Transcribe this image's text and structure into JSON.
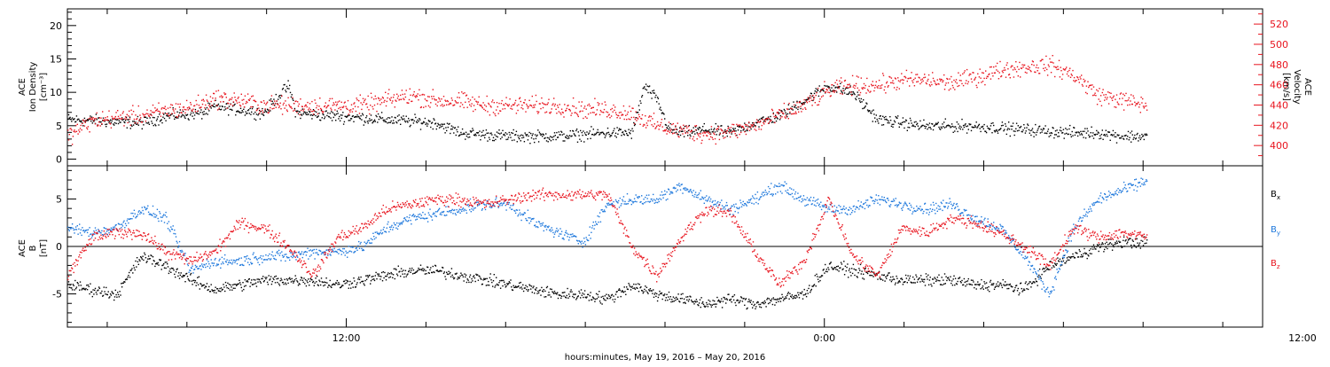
{
  "chart_data": [
    {
      "type": "scatter",
      "panel": "ion-density-velocity",
      "ylabel_left": [
        "ACE",
        "Ion Density",
        "[cm⁻³]"
      ],
      "ylabel_right": [
        "ACE",
        "Velocity",
        "[km/s]"
      ],
      "y_left_range": [
        -1,
        22.5
      ],
      "y_left_ticks": [
        "0",
        "5",
        "10",
        "15",
        "20"
      ],
      "y_right_range": [
        380,
        535
      ],
      "y_right_ticks": [
        "400",
        "420",
        "440",
        "460",
        "480",
        "500",
        "520"
      ],
      "colors": {
        "density": "#000000",
        "velocity": "#e8141e"
      },
      "density_anchors": [
        [
          0,
          6
        ],
        [
          3,
          5.5
        ],
        [
          4,
          6.5
        ],
        [
          5.5,
          7
        ],
        [
          6,
          8
        ],
        [
          7,
          7.5
        ],
        [
          8,
          7
        ],
        [
          8.7,
          10
        ],
        [
          9,
          11
        ],
        [
          9.3,
          7
        ],
        [
          11,
          6.5
        ],
        [
          13,
          6
        ],
        [
          15,
          5.5
        ],
        [
          16,
          4
        ],
        [
          18,
          3.5
        ],
        [
          20,
          3.5
        ],
        [
          22,
          4
        ],
        [
          23,
          4
        ],
        [
          23.5,
          11
        ],
        [
          24,
          9
        ],
        [
          24.5,
          4.5
        ],
        [
          25,
          4
        ],
        [
          26,
          4.5
        ],
        [
          27,
          4
        ],
        [
          28,
          5.5
        ],
        [
          29,
          6.5
        ],
        [
          30.5,
          10
        ],
        [
          31,
          11
        ],
        [
          32,
          10
        ],
        [
          33,
          6
        ],
        [
          35,
          5
        ],
        [
          37,
          5
        ],
        [
          39,
          4.5
        ],
        [
          41,
          4
        ],
        [
          42,
          4
        ],
        [
          43,
          3.5
        ],
        [
          44,
          3.5
        ]
      ],
      "velocity_anchors": [
        [
          0,
          410
        ],
        [
          1,
          425
        ],
        [
          2,
          428
        ],
        [
          3,
          430
        ],
        [
          4,
          435
        ],
        [
          5,
          438
        ],
        [
          6,
          447
        ],
        [
          7,
          445
        ],
        [
          8,
          440
        ],
        [
          9,
          440
        ],
        [
          10,
          440
        ],
        [
          11,
          440
        ],
        [
          12,
          440
        ],
        [
          13,
          445
        ],
        [
          14,
          450
        ],
        [
          15,
          445
        ],
        [
          16,
          444
        ],
        [
          17,
          440
        ],
        [
          18,
          440
        ],
        [
          19,
          440
        ],
        [
          20,
          440
        ],
        [
          21,
          436
        ],
        [
          22,
          436
        ],
        [
          23,
          432
        ],
        [
          24,
          420
        ],
        [
          25,
          415
        ],
        [
          26,
          412
        ],
        [
          27,
          414
        ],
        [
          28,
          420
        ],
        [
          29,
          430
        ],
        [
          30,
          440
        ],
        [
          31,
          455
        ],
        [
          32,
          460
        ],
        [
          33,
          460
        ],
        [
          34,
          465
        ],
        [
          35,
          465
        ],
        [
          36,
          462
        ],
        [
          37,
          468
        ],
        [
          38,
          475
        ],
        [
          39,
          478
        ],
        [
          40,
          480
        ],
        [
          41,
          470
        ],
        [
          42,
          450
        ],
        [
          43,
          445
        ],
        [
          44,
          440
        ]
      ],
      "density_noise": 1.3,
      "velocity_noise": 13
    },
    {
      "type": "scatter",
      "panel": "magnetic-field",
      "ylabel_left": [
        "ACE",
        "B",
        "[nT]"
      ],
      "y_range": [
        -8.5,
        8.5
      ],
      "y_ticks": [
        "-5",
        "0",
        "5"
      ],
      "series": [
        {
          "name": "Bx",
          "color": "#000000",
          "anchors": [
            [
              0,
              -4
            ],
            [
              1,
              -4.5
            ],
            [
              2,
              -5
            ],
            [
              3,
              -1
            ],
            [
              4,
              -2
            ],
            [
              5,
              -3.5
            ],
            [
              6,
              -4.5
            ],
            [
              7,
              -4
            ],
            [
              8,
              -3.5
            ],
            [
              9,
              -3.5
            ],
            [
              10,
              -3.5
            ],
            [
              11,
              -4
            ],
            [
              12,
              -3.5
            ],
            [
              13,
              -3
            ],
            [
              14,
              -2.5
            ],
            [
              15,
              -2.5
            ],
            [
              16,
              -3
            ],
            [
              17,
              -3.5
            ],
            [
              18,
              -4
            ],
            [
              19,
              -4.5
            ],
            [
              20,
              -5
            ],
            [
              21,
              -5
            ],
            [
              22,
              -5.5
            ],
            [
              23,
              -4
            ],
            [
              24,
              -5
            ],
            [
              25,
              -5.5
            ],
            [
              26,
              -6
            ],
            [
              27,
              -5.5
            ],
            [
              28,
              -6
            ],
            [
              29,
              -5.5
            ],
            [
              30,
              -5
            ],
            [
              31,
              -2
            ],
            [
              32,
              -2.5
            ],
            [
              33,
              -3
            ],
            [
              34,
              -3.5
            ],
            [
              35,
              -3.5
            ],
            [
              36,
              -3.5
            ],
            [
              37,
              -4
            ],
            [
              38,
              -4
            ],
            [
              39,
              -4.5
            ],
            [
              40,
              -2
            ],
            [
              41,
              -1
            ],
            [
              42,
              0
            ],
            [
              43,
              0.5
            ],
            [
              44,
              0.5
            ]
          ]
        },
        {
          "name": "By",
          "color": "#1e78dc",
          "anchors": [
            [
              0,
              2
            ],
            [
              1,
              1.5
            ],
            [
              2,
              2
            ],
            [
              3,
              4
            ],
            [
              4,
              3
            ],
            [
              5,
              -2.5
            ],
            [
              6,
              -1.5
            ],
            [
              7,
              -1.5
            ],
            [
              8,
              -1
            ],
            [
              9,
              -1
            ],
            [
              10,
              -0.5
            ],
            [
              11,
              -0.5
            ],
            [
              12,
              0
            ],
            [
              13,
              2
            ],
            [
              14,
              3
            ],
            [
              15,
              3.5
            ],
            [
              16,
              4
            ],
            [
              17,
              4.5
            ],
            [
              18,
              4.5
            ],
            [
              19,
              2.5
            ],
            [
              20,
              1.5
            ],
            [
              21,
              0.5
            ],
            [
              22,
              4.5
            ],
            [
              23,
              5
            ],
            [
              24,
              5
            ],
            [
              25,
              6.5
            ],
            [
              26,
              5
            ],
            [
              27,
              4
            ],
            [
              28,
              5
            ],
            [
              29,
              6.5
            ],
            [
              30,
              5
            ],
            [
              31,
              4
            ],
            [
              32,
              4
            ],
            [
              33,
              5
            ],
            [
              34,
              4.5
            ],
            [
              35,
              4
            ],
            [
              36,
              4.5
            ],
            [
              37,
              3
            ],
            [
              38,
              2
            ],
            [
              39,
              -1
            ],
            [
              40,
              -5
            ],
            [
              41,
              2
            ],
            [
              42,
              5
            ],
            [
              43,
              6
            ],
            [
              44,
              7
            ]
          ]
        },
        {
          "name": "Bz",
          "color": "#e8141e",
          "anchors": [
            [
              0,
              -3
            ],
            [
              1,
              1
            ],
            [
              2,
              1.5
            ],
            [
              3,
              1.5
            ],
            [
              4,
              -0.5
            ],
            [
              5,
              -1.5
            ],
            [
              6,
              -0.5
            ],
            [
              7,
              2.5
            ],
            [
              8,
              2
            ],
            [
              9,
              0
            ],
            [
              10,
              -3
            ],
            [
              11,
              1
            ],
            [
              12,
              2
            ],
            [
              13,
              4
            ],
            [
              14,
              4.5
            ],
            [
              15,
              5
            ],
            [
              16,
              5
            ],
            [
              17,
              4.5
            ],
            [
              18,
              5
            ],
            [
              19,
              5.5
            ],
            [
              20,
              5.5
            ],
            [
              21,
              5.5
            ],
            [
              22,
              5.5
            ],
            [
              23,
              0
            ],
            [
              24,
              -3
            ],
            [
              25,
              1
            ],
            [
              26,
              4
            ],
            [
              27,
              3.5
            ],
            [
              28,
              -0.5
            ],
            [
              29,
              -4
            ],
            [
              30,
              -1.5
            ],
            [
              31,
              5
            ],
            [
              32,
              -1
            ],
            [
              33,
              -3
            ],
            [
              34,
              2
            ],
            [
              35,
              1.5
            ],
            [
              36,
              3
            ],
            [
              37,
              2.5
            ],
            [
              38,
              1.5
            ],
            [
              39,
              0
            ],
            [
              40,
              -2
            ],
            [
              41,
              2
            ],
            [
              42,
              1
            ],
            [
              43,
              1.5
            ],
            [
              44,
              1
            ]
          ]
        }
      ],
      "noise": 0.9,
      "legend": [
        "B",
        "B",
        "B"
      ],
      "legend_sub": [
        "x",
        "y",
        "z"
      ],
      "legend_placement": "right"
    }
  ],
  "time_axis": {
    "x_range_hours": [
      5,
      35
    ],
    "data_end_hour": 32.1,
    "tick_labels": [
      {
        "hour": 12,
        "label": "12:00"
      },
      {
        "hour": 24,
        "label": "0:00"
      },
      {
        "hour": 36,
        "label": "12:00"
      }
    ],
    "xlabel": "hours:minutes, May 19, 2016 – May 20, 2016"
  }
}
